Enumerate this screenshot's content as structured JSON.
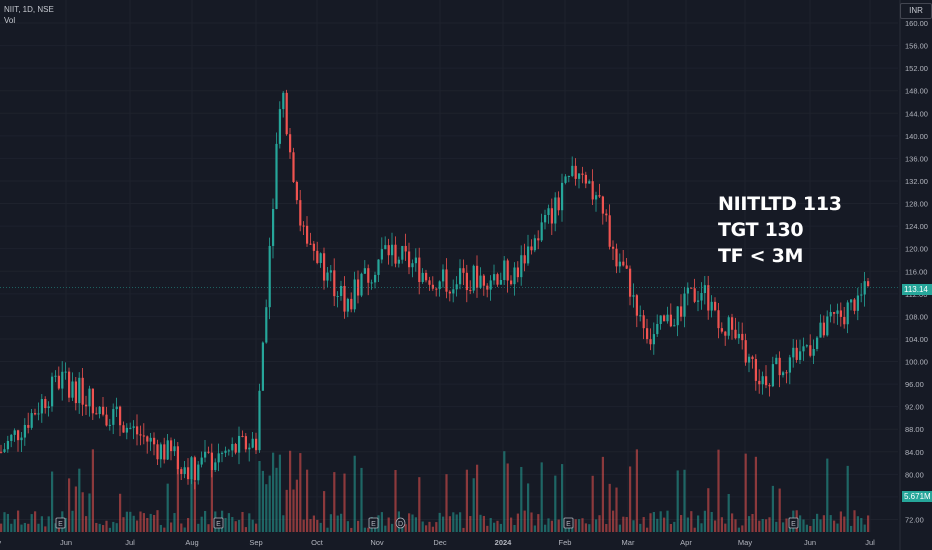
{
  "header": {
    "symbol_line": "NIIT, 1D, NSE",
    "volume_label": "Vol"
  },
  "currency_label": "INR",
  "annotation": {
    "line1": "NIITLTD 113",
    "line2": "TGT 130",
    "line3": "TF < 3M"
  },
  "last_price_label": "113.14",
  "last_volume_label": "5.671M",
  "colors": {
    "background": "#161a25",
    "up": "#26a69a",
    "down": "#ef5350",
    "grid": "#1e222d",
    "text": "#b2b5be"
  },
  "chart_data": {
    "type": "candlestick",
    "y_axis": {
      "ticks": [
        "160.00",
        "156.00",
        "152.00",
        "148.00",
        "144.00",
        "140.00",
        "136.00",
        "132.00",
        "128.00",
        "124.00",
        "120.00",
        "116.00",
        "112.00",
        "108.00",
        "104.00",
        "100.00",
        "96.00",
        "92.00",
        "88.00",
        "84.00",
        "80.00",
        "76.00",
        "72.00"
      ],
      "range": [
        70.5,
        161.5
      ]
    },
    "x_axis": {
      "ticks": [
        "May",
        "Jun",
        "Jul",
        "Aug",
        "Sep",
        "Oct",
        "Nov",
        "Dec",
        "2024",
        "Feb",
        "Mar",
        "Apr",
        "May",
        "Jun",
        "Jul"
      ]
    },
    "event_markers": [
      "E",
      "E",
      "E",
      "D",
      "E",
      "E"
    ],
    "last_price": 113.14,
    "key_levels": [
      {
        "date": "2023-05",
        "price": 84
      },
      {
        "date": "2023-06-mid",
        "price": 97
      },
      {
        "date": "2023-07",
        "price": 88
      },
      {
        "date": "2023-08-mid",
        "price": 81
      },
      {
        "date": "2023-09-start",
        "price": 86
      },
      {
        "date": "2023-09-mid",
        "price": 150
      },
      {
        "date": "2023-09-end",
        "price": 124
      },
      {
        "date": "2023-10-mid",
        "price": 110
      },
      {
        "date": "2023-11",
        "price": 120
      },
      {
        "date": "2023-12",
        "price": 114
      },
      {
        "date": "2024-01",
        "price": 116
      },
      {
        "date": "2024-02",
        "price": 135
      },
      {
        "date": "2024-03",
        "price": 104
      },
      {
        "date": "2024-04",
        "price": 113
      },
      {
        "date": "2024-05",
        "price": 97
      },
      {
        "date": "2024-06",
        "price": 104
      },
      {
        "date": "2024-07",
        "price": 113.14
      }
    ]
  }
}
